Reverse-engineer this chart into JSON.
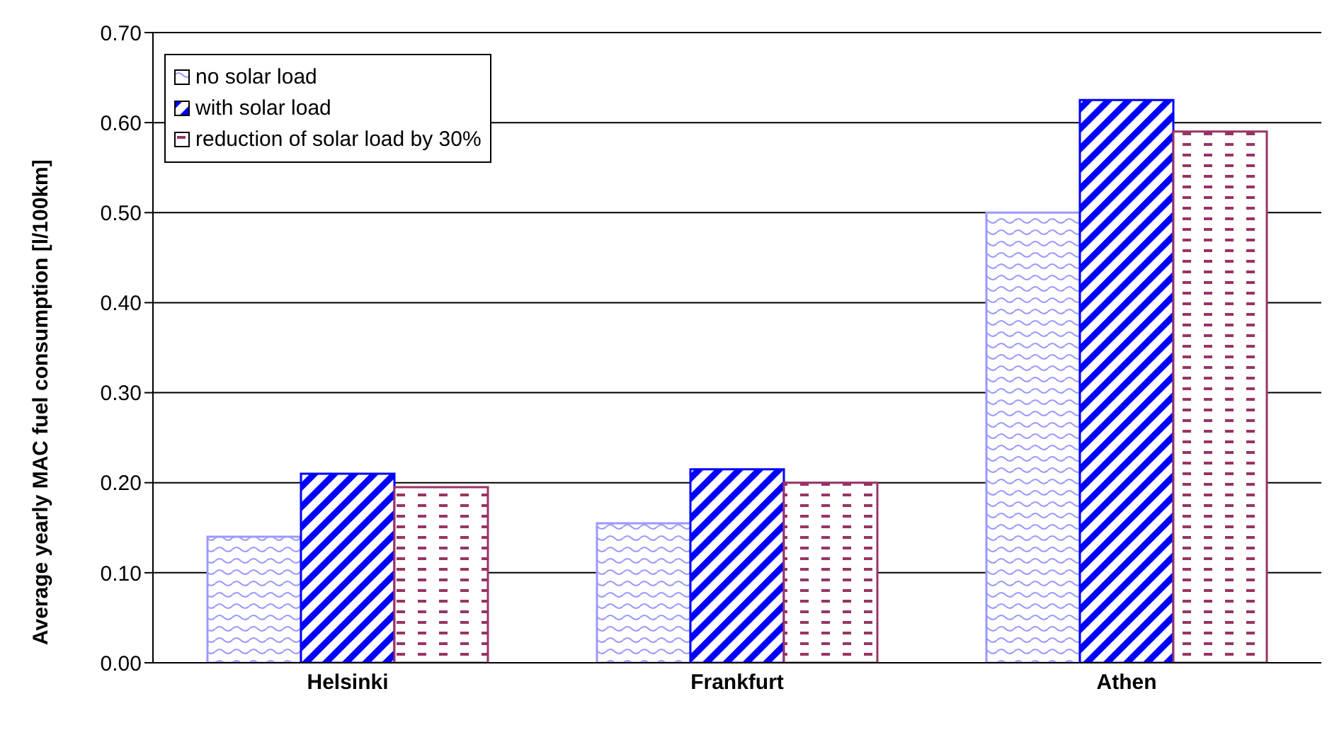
{
  "chart_data": {
    "type": "bar",
    "ylabel": "Average yearly MAC fuel consumption [l/100km]",
    "categories": [
      "Helsinki",
      "Frankfurt",
      "Athen"
    ],
    "series": [
      {
        "name": "no solar load",
        "color": "#9999ff",
        "values": [
          0.14,
          0.155,
          0.5
        ]
      },
      {
        "name": "with solar load",
        "color": "#0000ff",
        "values": [
          0.21,
          0.215,
          0.625
        ]
      },
      {
        "name": "reduction of solar load by 30%",
        "color": "#993366",
        "values": [
          0.195,
          0.2,
          0.59
        ]
      }
    ],
    "ylim": [
      0,
      0.7
    ],
    "yticks": [
      {
        "value": 0,
        "label": "0.00"
      },
      {
        "value": 0.1,
        "label": "0.10"
      },
      {
        "value": 0.2,
        "label": "0.20"
      },
      {
        "value": 0.3,
        "label": "0.30"
      },
      {
        "value": 0.4,
        "label": "0.40"
      },
      {
        "value": 0.5,
        "label": "0.50"
      },
      {
        "value": 0.6,
        "label": "0.60"
      },
      {
        "value": 0.7,
        "label": "0.70"
      }
    ],
    "grid": "y",
    "legend": "top left"
  }
}
